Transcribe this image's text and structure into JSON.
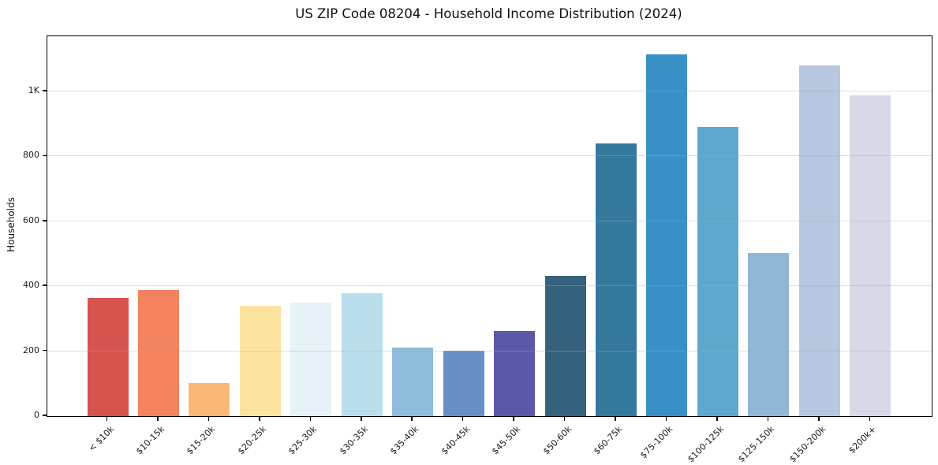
{
  "chart_data": {
    "type": "bar",
    "title": "US ZIP Code 08204 - Household Income Distribution (2024)",
    "xlabel": "",
    "ylabel": "Households",
    "categories": [
      "< $10k",
      "$10-15k",
      "$15-20k",
      "$20-25k",
      "$25-30k",
      "$30-35k",
      "$35-40k",
      "$40-45k",
      "$45-50k",
      "$50-60k",
      "$60-75k",
      "$75-100k",
      "$100-125k",
      "$125-150k",
      "$150-200k",
      "$200k+"
    ],
    "values": [
      365,
      388,
      102,
      340,
      350,
      378,
      212,
      202,
      262,
      432,
      840,
      1115,
      892,
      502,
      1080,
      988
    ],
    "bar_colors": [
      "#d6544e",
      "#f3825f",
      "#fab877",
      "#fde3a0",
      "#e6f2f7",
      "#bbdeed",
      "#8fbcda",
      "#6990c5",
      "#5b58a9",
      "#36617c",
      "#35789e",
      "#3890c6",
      "#5fa8cd",
      "#91b7d7",
      "#b8c7e0",
      "#d7d9e7"
    ],
    "ylim": [
      0,
      1170
    ],
    "ytick_values": [
      0,
      200,
      400,
      600,
      800,
      1000
    ],
    "ytick_labels": [
      "0",
      "200",
      "400",
      "600",
      "800",
      "1K"
    ],
    "grid": "horizontal-only, light gray, drawn above bars",
    "legend": "none",
    "background_color": "#ffffff",
    "spine_color": "#000000"
  }
}
